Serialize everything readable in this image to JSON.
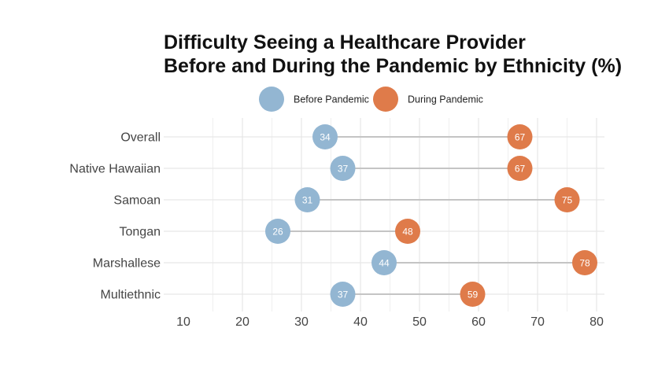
{
  "chart_data": {
    "type": "dumbbell",
    "title_lines": [
      "Difficulty Seeing a Healthcare Provider",
      "Before and During the Pandemic by Ethnicity (%)"
    ],
    "legend_position": "top-center",
    "grid": true,
    "xlim": [
      10,
      80
    ],
    "x_ticks": [
      10,
      20,
      30,
      40,
      50,
      60,
      70,
      80
    ],
    "categories": [
      "Overall",
      "Native Hawaiian",
      "Samoan",
      "Tongan",
      "Marshallese",
      "Multiethnic"
    ],
    "series": [
      {
        "name": "Before Pandemic",
        "color": "#93b6d2",
        "values": [
          34,
          37,
          31,
          26,
          44,
          37
        ]
      },
      {
        "name": "During Pandemic",
        "color": "#df7b4a",
        "values": [
          67,
          67,
          75,
          48,
          78,
          59
        ]
      }
    ],
    "connector_color": "#c4c4c4",
    "grid_color": "#e6e6e6"
  }
}
